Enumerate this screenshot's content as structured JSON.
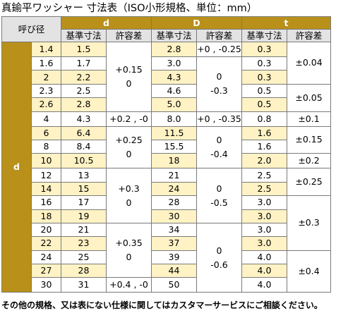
{
  "title": "真鍮平ワッシャー 寸法表（ISO小形規格、単位：mm）",
  "header": {
    "nominal": "呼び径",
    "groups": [
      "d",
      "D",
      "t"
    ],
    "sub": {
      "std": "基準寸法",
      "tol": "許容差"
    }
  },
  "row_group_label": "d",
  "rows": [
    {
      "n": "1.4",
      "d": "1.5",
      "D": "2.8",
      "t": "0.3"
    },
    {
      "n": "1.6",
      "d": "1.7",
      "D": "3.0",
      "t": "0.3"
    },
    {
      "n": "2",
      "d": "2.2",
      "D": "4.3",
      "t": "0.3"
    },
    {
      "n": "2.3",
      "d": "2.5",
      "D": "4.6",
      "t": "0.5"
    },
    {
      "n": "2.6",
      "d": "2.8",
      "D": "5.0",
      "t": "0.5"
    },
    {
      "n": "4",
      "d": "4.3",
      "D": "8.0",
      "t": "0.8"
    },
    {
      "n": "6",
      "d": "6.4",
      "D": "11.5",
      "t": "1.6"
    },
    {
      "n": "8",
      "d": "8.4",
      "D": "15.5",
      "t": "1.6"
    },
    {
      "n": "10",
      "d": "10.5",
      "D": "18",
      "t": "2.0"
    },
    {
      "n": "12",
      "d": "13",
      "D": "21",
      "t": "2.5"
    },
    {
      "n": "14",
      "d": "15",
      "D": "24",
      "t": "2.5"
    },
    {
      "n": "16",
      "d": "17",
      "D": "28",
      "t": "3.0"
    },
    {
      "n": "18",
      "d": "19",
      "D": "30",
      "t": "3.0"
    },
    {
      "n": "20",
      "d": "21",
      "D": "34",
      "t": "3.0"
    },
    {
      "n": "22",
      "d": "23",
      "D": "37",
      "t": "3.0"
    },
    {
      "n": "24",
      "d": "25",
      "D": "39",
      "t": "4.0"
    },
    {
      "n": "27",
      "d": "28",
      "D": "44",
      "t": "4.0"
    },
    {
      "n": "30",
      "d": "31",
      "D": "50",
      "t": "4.0"
    }
  ],
  "d_tol": [
    {
      "start": 0,
      "span": 5,
      "lines": [
        "+0.15",
        "0"
      ]
    },
    {
      "start": 5,
      "span": 1,
      "lines": [
        "+0.2 , -0"
      ]
    },
    {
      "start": 6,
      "span": 3,
      "lines": [
        "+0.25",
        "0"
      ]
    },
    {
      "start": 9,
      "span": 4,
      "lines": [
        "+0.3",
        "0"
      ]
    },
    {
      "start": 13,
      "span": 4,
      "lines": [
        "+0.35",
        "0"
      ]
    },
    {
      "start": 17,
      "span": 1,
      "lines": [
        "+0.4 , -0"
      ]
    }
  ],
  "D_tol": [
    {
      "start": 0,
      "span": 1,
      "lines": [
        "+0 , -0.25"
      ]
    },
    {
      "start": 1,
      "span": 4,
      "lines": [
        "0",
        "-0.3"
      ]
    },
    {
      "start": 5,
      "span": 1,
      "lines": [
        "+0 , -0.35"
      ]
    },
    {
      "start": 6,
      "span": 3,
      "lines": [
        "0",
        "-0.4"
      ]
    },
    {
      "start": 9,
      "span": 4,
      "lines": [
        "0",
        "-0.5"
      ]
    },
    {
      "start": 13,
      "span": 5,
      "lines": [
        "0",
        "-0.6"
      ]
    }
  ],
  "t_tol": [
    {
      "start": 0,
      "span": 3,
      "lines": [
        "±0.04"
      ]
    },
    {
      "start": 3,
      "span": 2,
      "lines": [
        "±0.05"
      ]
    },
    {
      "start": 5,
      "span": 1,
      "lines": [
        "±0.1"
      ]
    },
    {
      "start": 6,
      "span": 2,
      "lines": [
        "±0.15"
      ]
    },
    {
      "start": 8,
      "span": 1,
      "lines": [
        "±0.2"
      ]
    },
    {
      "start": 9,
      "span": 2,
      "lines": [
        "±0.25"
      ]
    },
    {
      "start": 11,
      "span": 4,
      "lines": [
        "±0.3"
      ]
    },
    {
      "start": 15,
      "span": 3,
      "lines": [
        "±0.4"
      ]
    }
  ],
  "note": "その他の規格、又は表にない仕様に関してはカスタマーサービスにご相談ください。",
  "colors": {
    "header_gray": "#e3e3e3",
    "gold": "#b8901a",
    "light_yellow": "#fff2c4"
  }
}
